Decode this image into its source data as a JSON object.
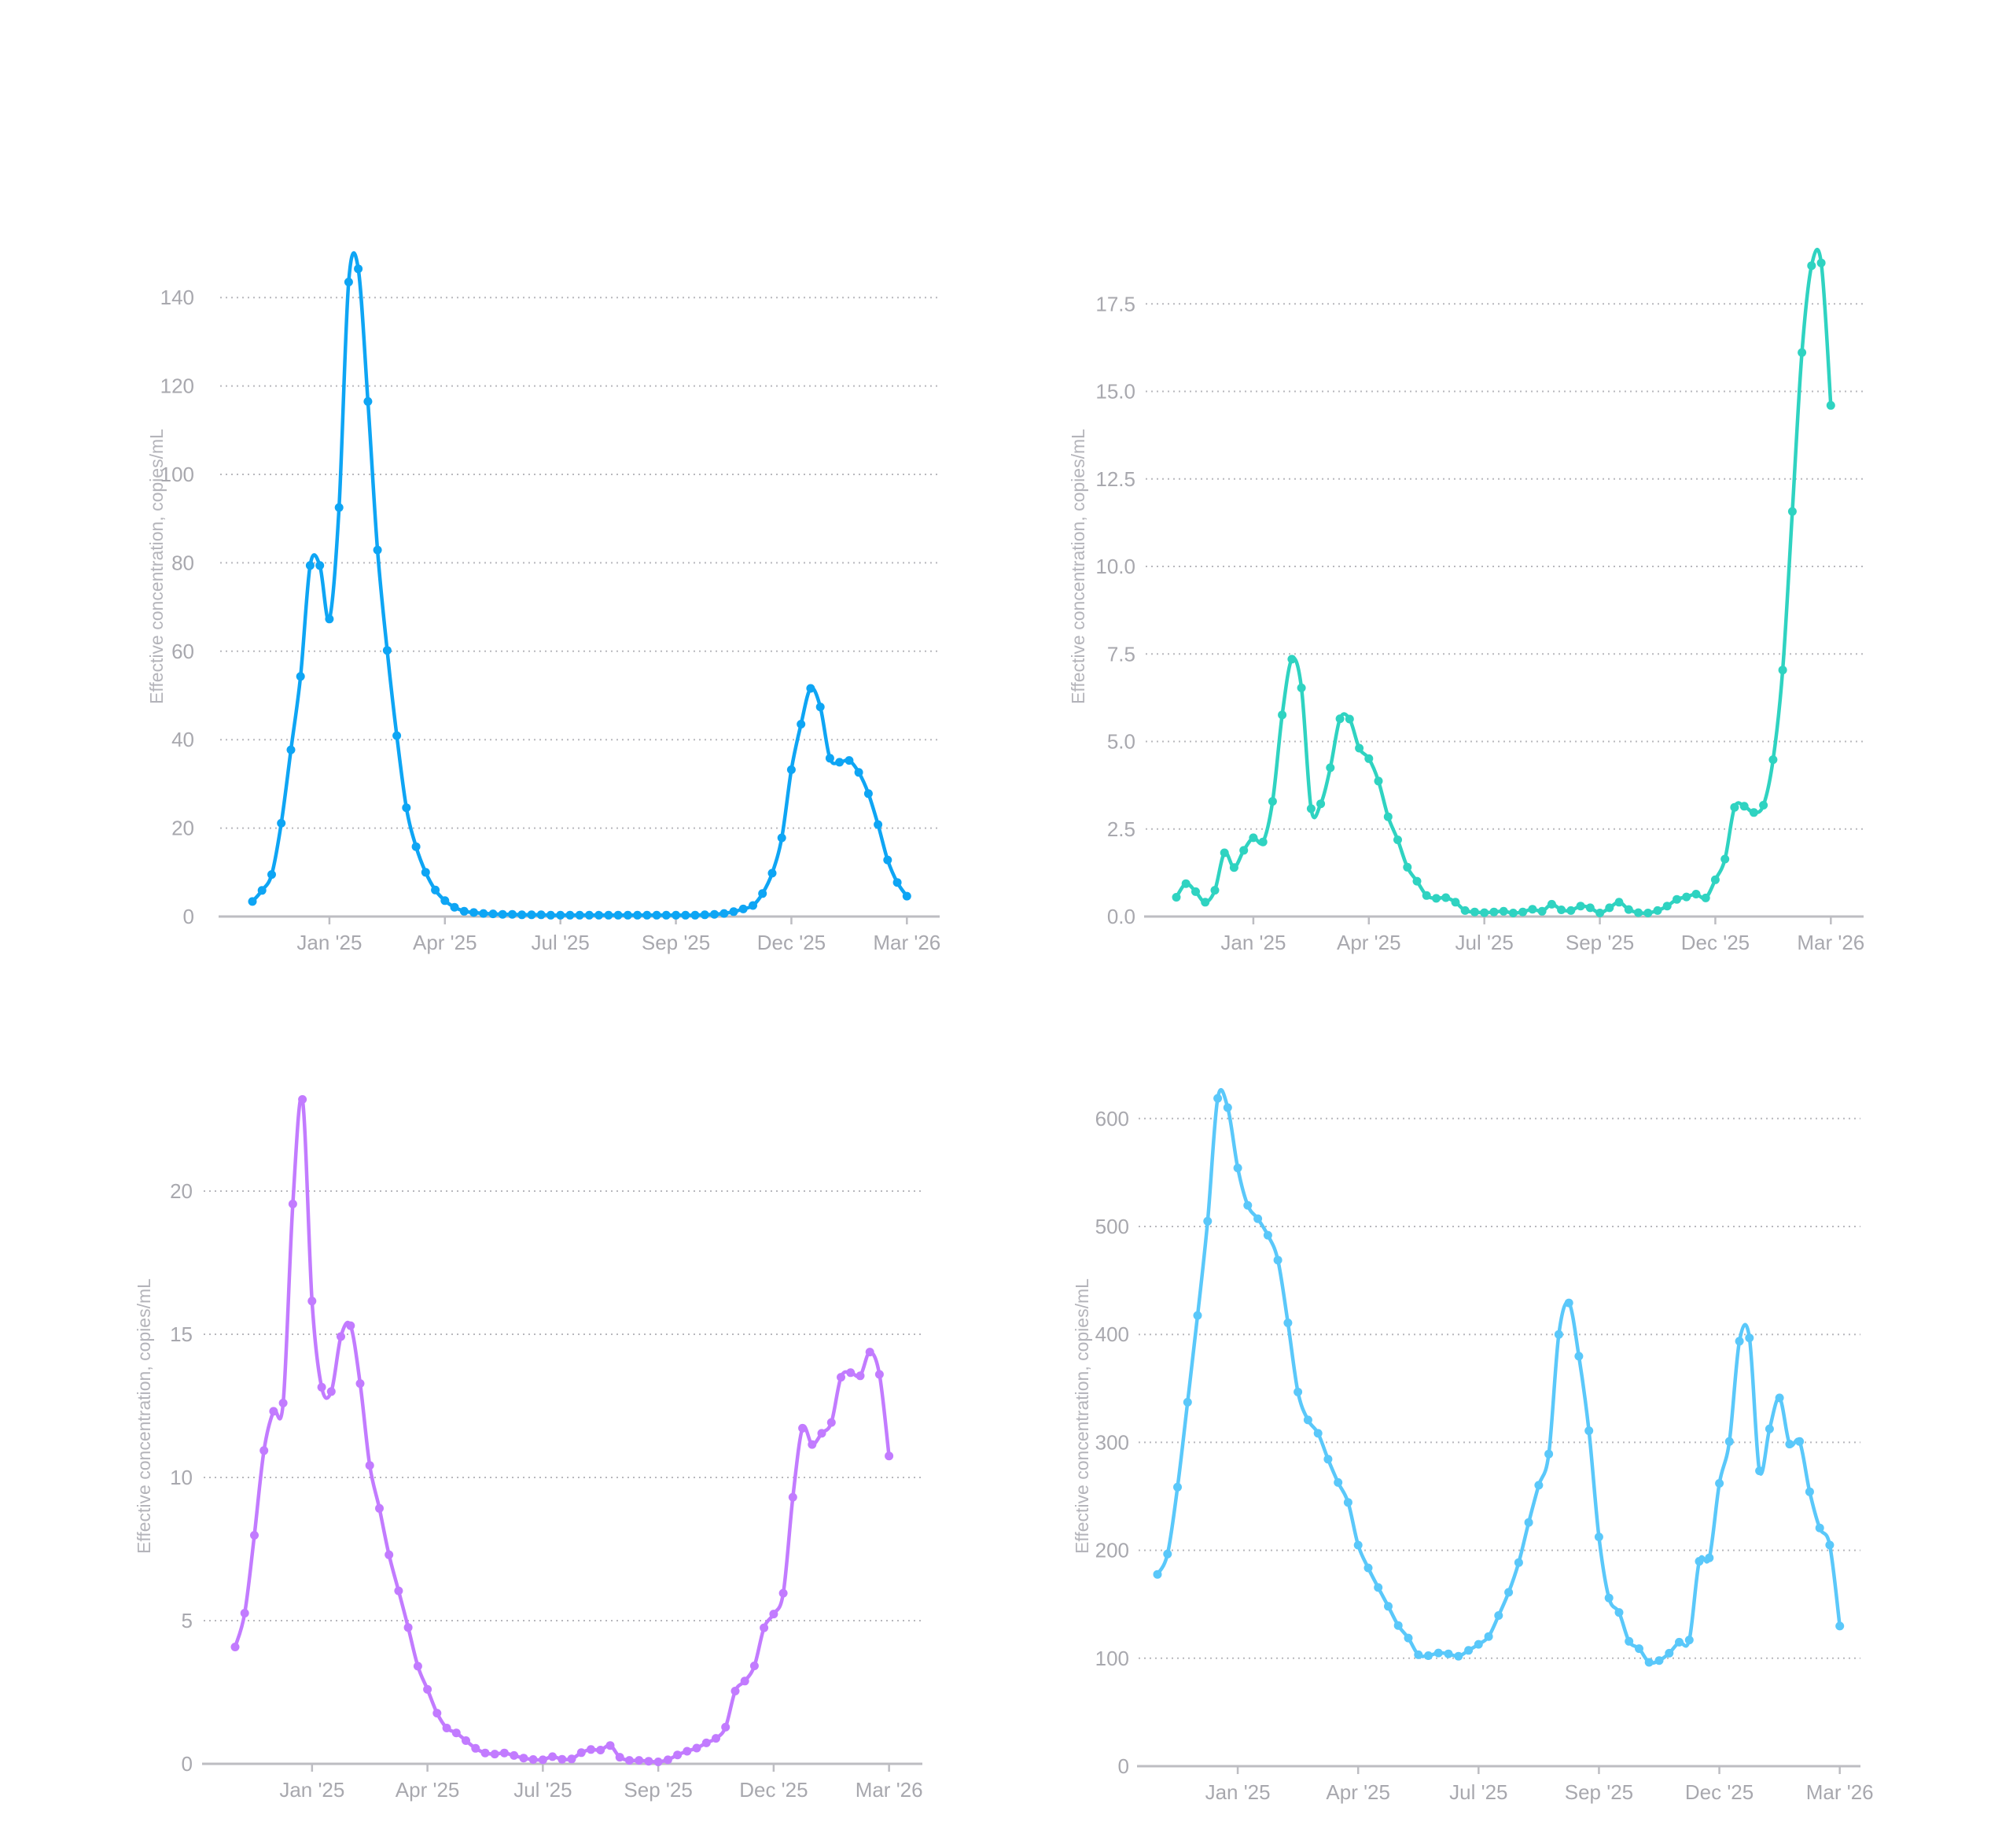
{
  "chart_data": [
    {
      "type": "line",
      "title": "",
      "xlabel": "",
      "ylabel": "Effective concentration, copies/mL",
      "color": "#0ea5f4",
      "x_unit": "week index (weekly samples)",
      "x_ticks": [
        {
          "label": "Jan '25",
          "x": 8
        },
        {
          "label": "Apr '25",
          "x": 20
        },
        {
          "label": "Jul '25",
          "x": 32
        },
        {
          "label": "Sep '25",
          "x": 44
        },
        {
          "label": "Dec '25",
          "x": 56
        },
        {
          "label": "Mar '26",
          "x": 68
        }
      ],
      "y_ticks": [
        0,
        20,
        40,
        60,
        80,
        100,
        120,
        140
      ],
      "y_tick_labels": [
        "0",
        "20",
        "40",
        "60",
        "80",
        "100",
        "120",
        "140"
      ],
      "xlim": [
        -3.5,
        71.4
      ],
      "ylim": [
        0,
        150
      ],
      "grid": true,
      "values": [
        3.4,
        5.9,
        9.5,
        21.1,
        37.7,
        54.3,
        79.4,
        79.4,
        67.3,
        92.5,
        143.5,
        146.5,
        116.5,
        82.9,
        60.2,
        40.9,
        24.6,
        15.8,
        10.0,
        6.0,
        3.6,
        2.1,
        1.2,
        0.9,
        0.7,
        0.6,
        0.5,
        0.5,
        0.4,
        0.4,
        0.4,
        0.3,
        0.3,
        0.3,
        0.3,
        0.3,
        0.3,
        0.3,
        0.3,
        0.3,
        0.3,
        0.3,
        0.3,
        0.3,
        0.3,
        0.3,
        0.3,
        0.4,
        0.5,
        0.7,
        1.1,
        1.7,
        2.5,
        5.2,
        9.8,
        17.8,
        33.2,
        43.5,
        51.6,
        47.4,
        35.8,
        34.9,
        35.3,
        32.6,
        27.8,
        20.8,
        12.8,
        7.7,
        4.6
      ]
    },
    {
      "type": "line",
      "title": "",
      "xlabel": "",
      "ylabel": "Effective concentration, copies/mL",
      "color": "#2fd3c1",
      "x_unit": "week index (weekly samples)",
      "x_ticks": [
        {
          "label": "Jan '25",
          "x": 8
        },
        {
          "label": "Apr '25",
          "x": 20
        },
        {
          "label": "Jul '25",
          "x": 32
        },
        {
          "label": "Sep '25",
          "x": 44
        },
        {
          "label": "Dec '25",
          "x": 56
        },
        {
          "label": "Mar '26",
          "x": 68
        }
      ],
      "y_ticks": [
        0,
        2.5,
        5,
        7.5,
        10,
        12.5,
        15,
        17.5
      ],
      "y_tick_labels": [
        "0.0",
        "2.5",
        "5.0",
        "7.5",
        "10.0",
        "12.5",
        "15.0",
        "17.5"
      ],
      "xlim": [
        -3.4,
        71.5
      ],
      "ylim": [
        0,
        19
      ],
      "grid": true,
      "values": [
        0.55,
        0.94,
        0.71,
        0.41,
        0.75,
        1.82,
        1.4,
        1.89,
        2.25,
        2.13,
        3.29,
        5.76,
        7.35,
        6.53,
        3.08,
        3.22,
        4.25,
        5.65,
        5.64,
        4.81,
        4.51,
        3.87,
        2.85,
        2.19,
        1.41,
        1.01,
        0.6,
        0.52,
        0.54,
        0.41,
        0.17,
        0.13,
        0.11,
        0.13,
        0.15,
        0.1,
        0.13,
        0.21,
        0.15,
        0.35,
        0.19,
        0.17,
        0.3,
        0.25,
        0.1,
        0.25,
        0.41,
        0.2,
        0.11,
        0.1,
        0.17,
        0.3,
        0.49,
        0.56,
        0.64,
        0.53,
        1.05,
        1.64,
        3.12,
        3.15,
        2.97,
        3.18,
        4.48,
        7.04,
        11.57,
        16.11,
        18.59,
        18.67,
        14.6
      ]
    },
    {
      "type": "line",
      "title": "",
      "xlabel": "",
      "ylabel": "Effective concentration, copies/mL",
      "color": "#c27bff",
      "x_unit": "week index (weekly samples)",
      "x_ticks": [
        {
          "label": "Jan '25",
          "x": 8
        },
        {
          "label": "Apr '25",
          "x": 20
        },
        {
          "label": "Jul '25",
          "x": 32
        },
        {
          "label": "Sep '25",
          "x": 44
        },
        {
          "label": "Dec '25",
          "x": 56
        },
        {
          "label": "Mar '26",
          "x": 68
        }
      ],
      "y_ticks": [
        0,
        5,
        10,
        15,
        20
      ],
      "y_tick_labels": [
        "0",
        "5",
        "10",
        "15",
        "20"
      ],
      "xlim": [
        -3.4,
        71.4
      ],
      "ylim": [
        0,
        24
      ],
      "grid": true,
      "values": [
        4.08,
        5.26,
        7.98,
        10.94,
        12.31,
        12.6,
        19.55,
        23.2,
        16.16,
        13.15,
        13.0,
        14.92,
        15.3,
        13.28,
        10.42,
        8.92,
        7.3,
        6.04,
        4.76,
        3.41,
        2.6,
        1.77,
        1.25,
        1.08,
        0.81,
        0.54,
        0.38,
        0.34,
        0.38,
        0.29,
        0.2,
        0.15,
        0.14,
        0.25,
        0.16,
        0.17,
        0.39,
        0.5,
        0.48,
        0.64,
        0.23,
        0.12,
        0.12,
        0.09,
        0.07,
        0.14,
        0.31,
        0.44,
        0.55,
        0.73,
        0.89,
        1.28,
        2.54,
        2.89,
        3.42,
        4.75,
        5.23,
        5.96,
        9.31,
        11.72,
        11.15,
        11.54,
        11.92,
        13.5,
        13.66,
        13.55,
        14.38,
        13.6,
        10.75
      ]
    },
    {
      "type": "line",
      "title": "",
      "xlabel": "",
      "ylabel": "Effective concentration, copies/mL",
      "color": "#5ac8fa",
      "x_unit": "week index (weekly samples)",
      "x_ticks": [
        {
          "label": "Jan '25",
          "x": 8
        },
        {
          "label": "Apr '25",
          "x": 20
        },
        {
          "label": "Jul '25",
          "x": 32
        },
        {
          "label": "Sep '25",
          "x": 44
        },
        {
          "label": "Dec '25",
          "x": 56
        },
        {
          "label": "Mar '26",
          "x": 68
        }
      ],
      "y_ticks": [
        0,
        100,
        200,
        300,
        400,
        500,
        600
      ],
      "y_tick_labels": [
        "0",
        "100",
        "200",
        "300",
        "400",
        "500",
        "600"
      ],
      "xlim": [
        -2.0,
        70.1
      ],
      "ylim": [
        0,
        640
      ],
      "grid": true,
      "values": [
        177.7,
        196.6,
        258.5,
        337.2,
        417.6,
        504.9,
        618.7,
        610.1,
        554.2,
        519.6,
        507.2,
        491.9,
        468.9,
        410.7,
        346.7,
        320.8,
        308.4,
        284.4,
        262.8,
        244.4,
        204.8,
        183.7,
        165.5,
        148.1,
        130.3,
        118.7,
        103.2,
        102.4,
        104.9,
        104.1,
        101.9,
        107.3,
        112.9,
        120.1,
        139.6,
        161.1,
        188.6,
        225.8,
        260.3,
        289.2,
        400.0,
        429.2,
        379.8,
        310.8,
        212.4,
        155.8,
        142.4,
        115.7,
        108.9,
        96.2,
        97.9,
        104.7,
        114.9,
        116.9,
        189.8,
        193.0,
        262.0,
        300.8,
        393.7,
        396.8,
        273.6,
        312.5,
        341.2,
        298.4,
        300.8,
        254.2,
        220.7,
        204.9,
        129.8
      ]
    }
  ]
}
